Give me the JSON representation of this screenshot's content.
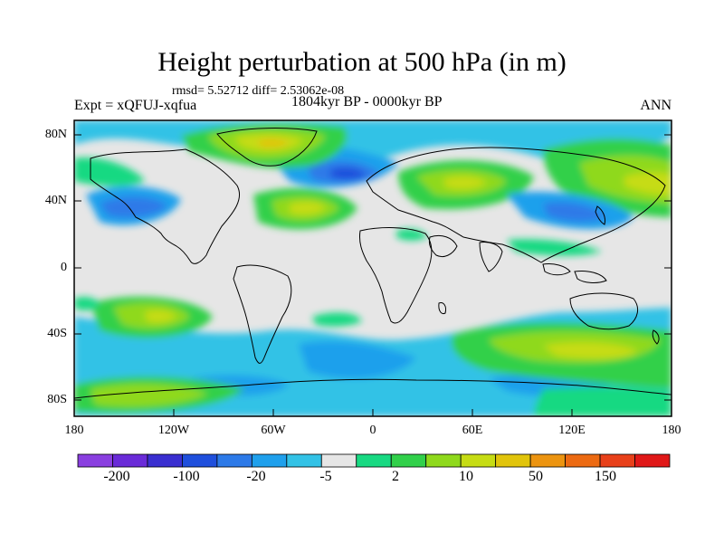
{
  "header": {
    "title": "Height perturbation at 500 hPa (in m)",
    "stats": "rmsd= 5.52712 diff= 2.53062e-08",
    "experiment": "Expt = xQFUJ-xqfua",
    "period": "1804kyr BP - 0000kyr BP",
    "season": "ANN"
  },
  "axes": {
    "y_ticks": [
      "80N",
      "40N",
      "0",
      "40S",
      "80S"
    ],
    "x_ticks": [
      "180",
      "120W",
      "60W",
      "0",
      "60E",
      "120E",
      "180"
    ]
  },
  "colors": {
    "land_outline": "#000000",
    "neutral": "#e6e6e6",
    "frame": "#000000"
  },
  "colorbar": {
    "colors": [
      "#8a3fe0",
      "#6a2bd8",
      "#3a2fd0",
      "#1f4fdc",
      "#2d7ae8",
      "#1fa0ec",
      "#33c2e6",
      "#e6e6e6",
      "#18d982",
      "#31d04a",
      "#8fd91c",
      "#c6dc14",
      "#e1c40b",
      "#ec9410",
      "#ec6a12",
      "#e8401a",
      "#e01818"
    ],
    "labels": [
      "-200",
      "-100",
      "-20",
      "-5",
      "2",
      "10",
      "50",
      "150"
    ]
  }
}
